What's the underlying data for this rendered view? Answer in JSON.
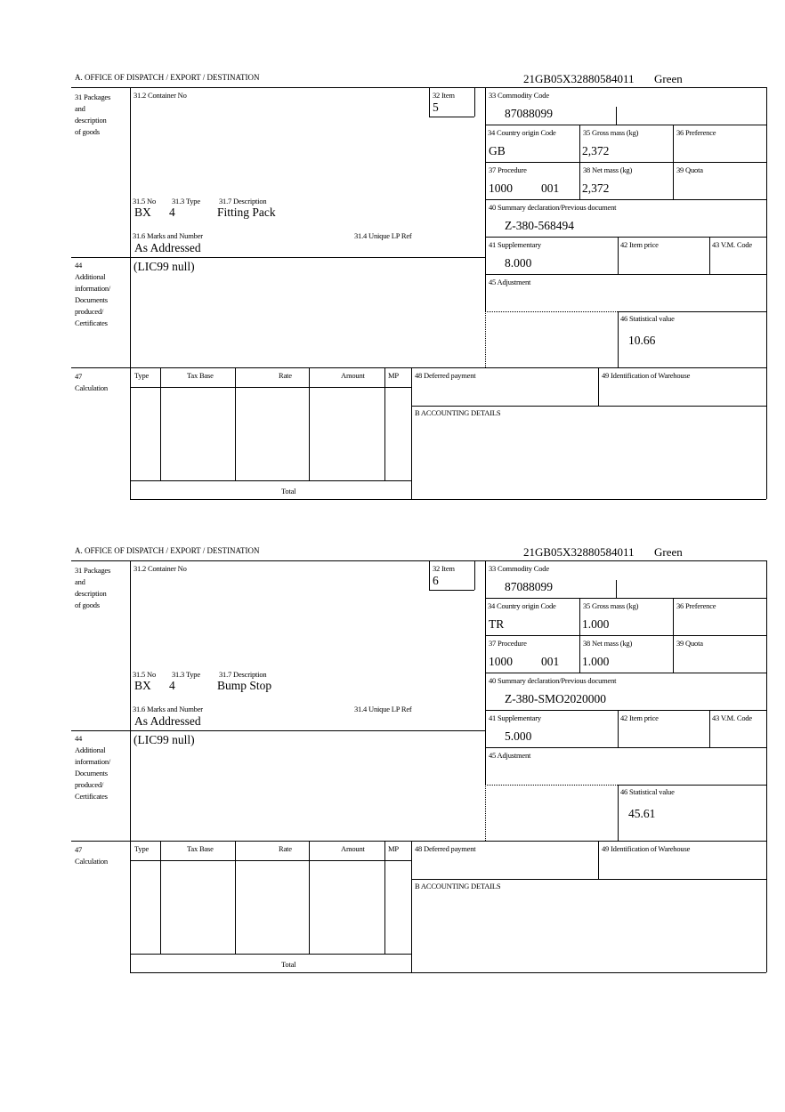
{
  "labels": {
    "office": "A.  OFFICE OF DISPATCH / EXPORT / DESTINATION",
    "packages": "31 Packages\nand\ndescription\nof goods",
    "container_no": "31.2 Container No",
    "item": "32 Item",
    "no": "31.5 No",
    "type": "31.3 Type",
    "description": "31.7 Description",
    "marks": "31.6 Marks and Number",
    "unique_lp": "31.4 Unique LP Ref",
    "additional": "44\nAdditional\ninformation/\nDocuments\nproduced/\nCertificates",
    "commodity": "33 Commodity Code",
    "country": "34 Country origin Code",
    "gross": "35 Gross mass (kg)",
    "preference": "36 Preference",
    "procedure": "37 Procedure",
    "net": "38 Net mass (kg)",
    "quota": "39 Quota",
    "summary": "40 Summary declaration/Previous document",
    "supplementary": "41 Supplementary",
    "item_price": "42 Item price",
    "vm_code": "43 V.M. Code",
    "adjustment": "45 Adjustment",
    "statistical": "46 Statistical value",
    "calculation": "47\nCalculation",
    "calc_type": "Type",
    "calc_tax_base": "Tax Base",
    "calc_rate": "Rate",
    "calc_amount": "Amount",
    "calc_mp": "MP",
    "deferred": "48 Deferred payment",
    "warehouse": "49 Identification of Warehouse",
    "accounting": "B ACCOUNTING DETAILS",
    "total": "Total"
  },
  "forms": [
    {
      "reference": "21GB05X32880584011",
      "status": "Green",
      "item": "5",
      "no": "BX",
      "type": "4",
      "description": "Fitting Pack",
      "marks": "As Addressed",
      "additional_info": "(LIC99 null)",
      "commodity_code": "87088099",
      "country_origin": "GB",
      "gross_mass": "2,372",
      "procedure": "1000",
      "procedure_additional": "001",
      "net_mass": "2,372",
      "summary_doc": "Z-380-568494",
      "supplementary": "8.000",
      "statistical_value": "10.66"
    },
    {
      "reference": "21GB05X32880584011",
      "status": "Green",
      "item": "6",
      "no": "BX",
      "type": "4",
      "description": "Bump Stop",
      "marks": "As Addressed",
      "additional_info": "(LIC99 null)",
      "commodity_code": "87088099",
      "country_origin": "TR",
      "gross_mass": "1.000",
      "procedure": "1000",
      "procedure_additional": "001",
      "net_mass": "1.000",
      "summary_doc": "Z-380-SMO2020000",
      "supplementary": "5.000",
      "statistical_value": "45.61"
    }
  ]
}
